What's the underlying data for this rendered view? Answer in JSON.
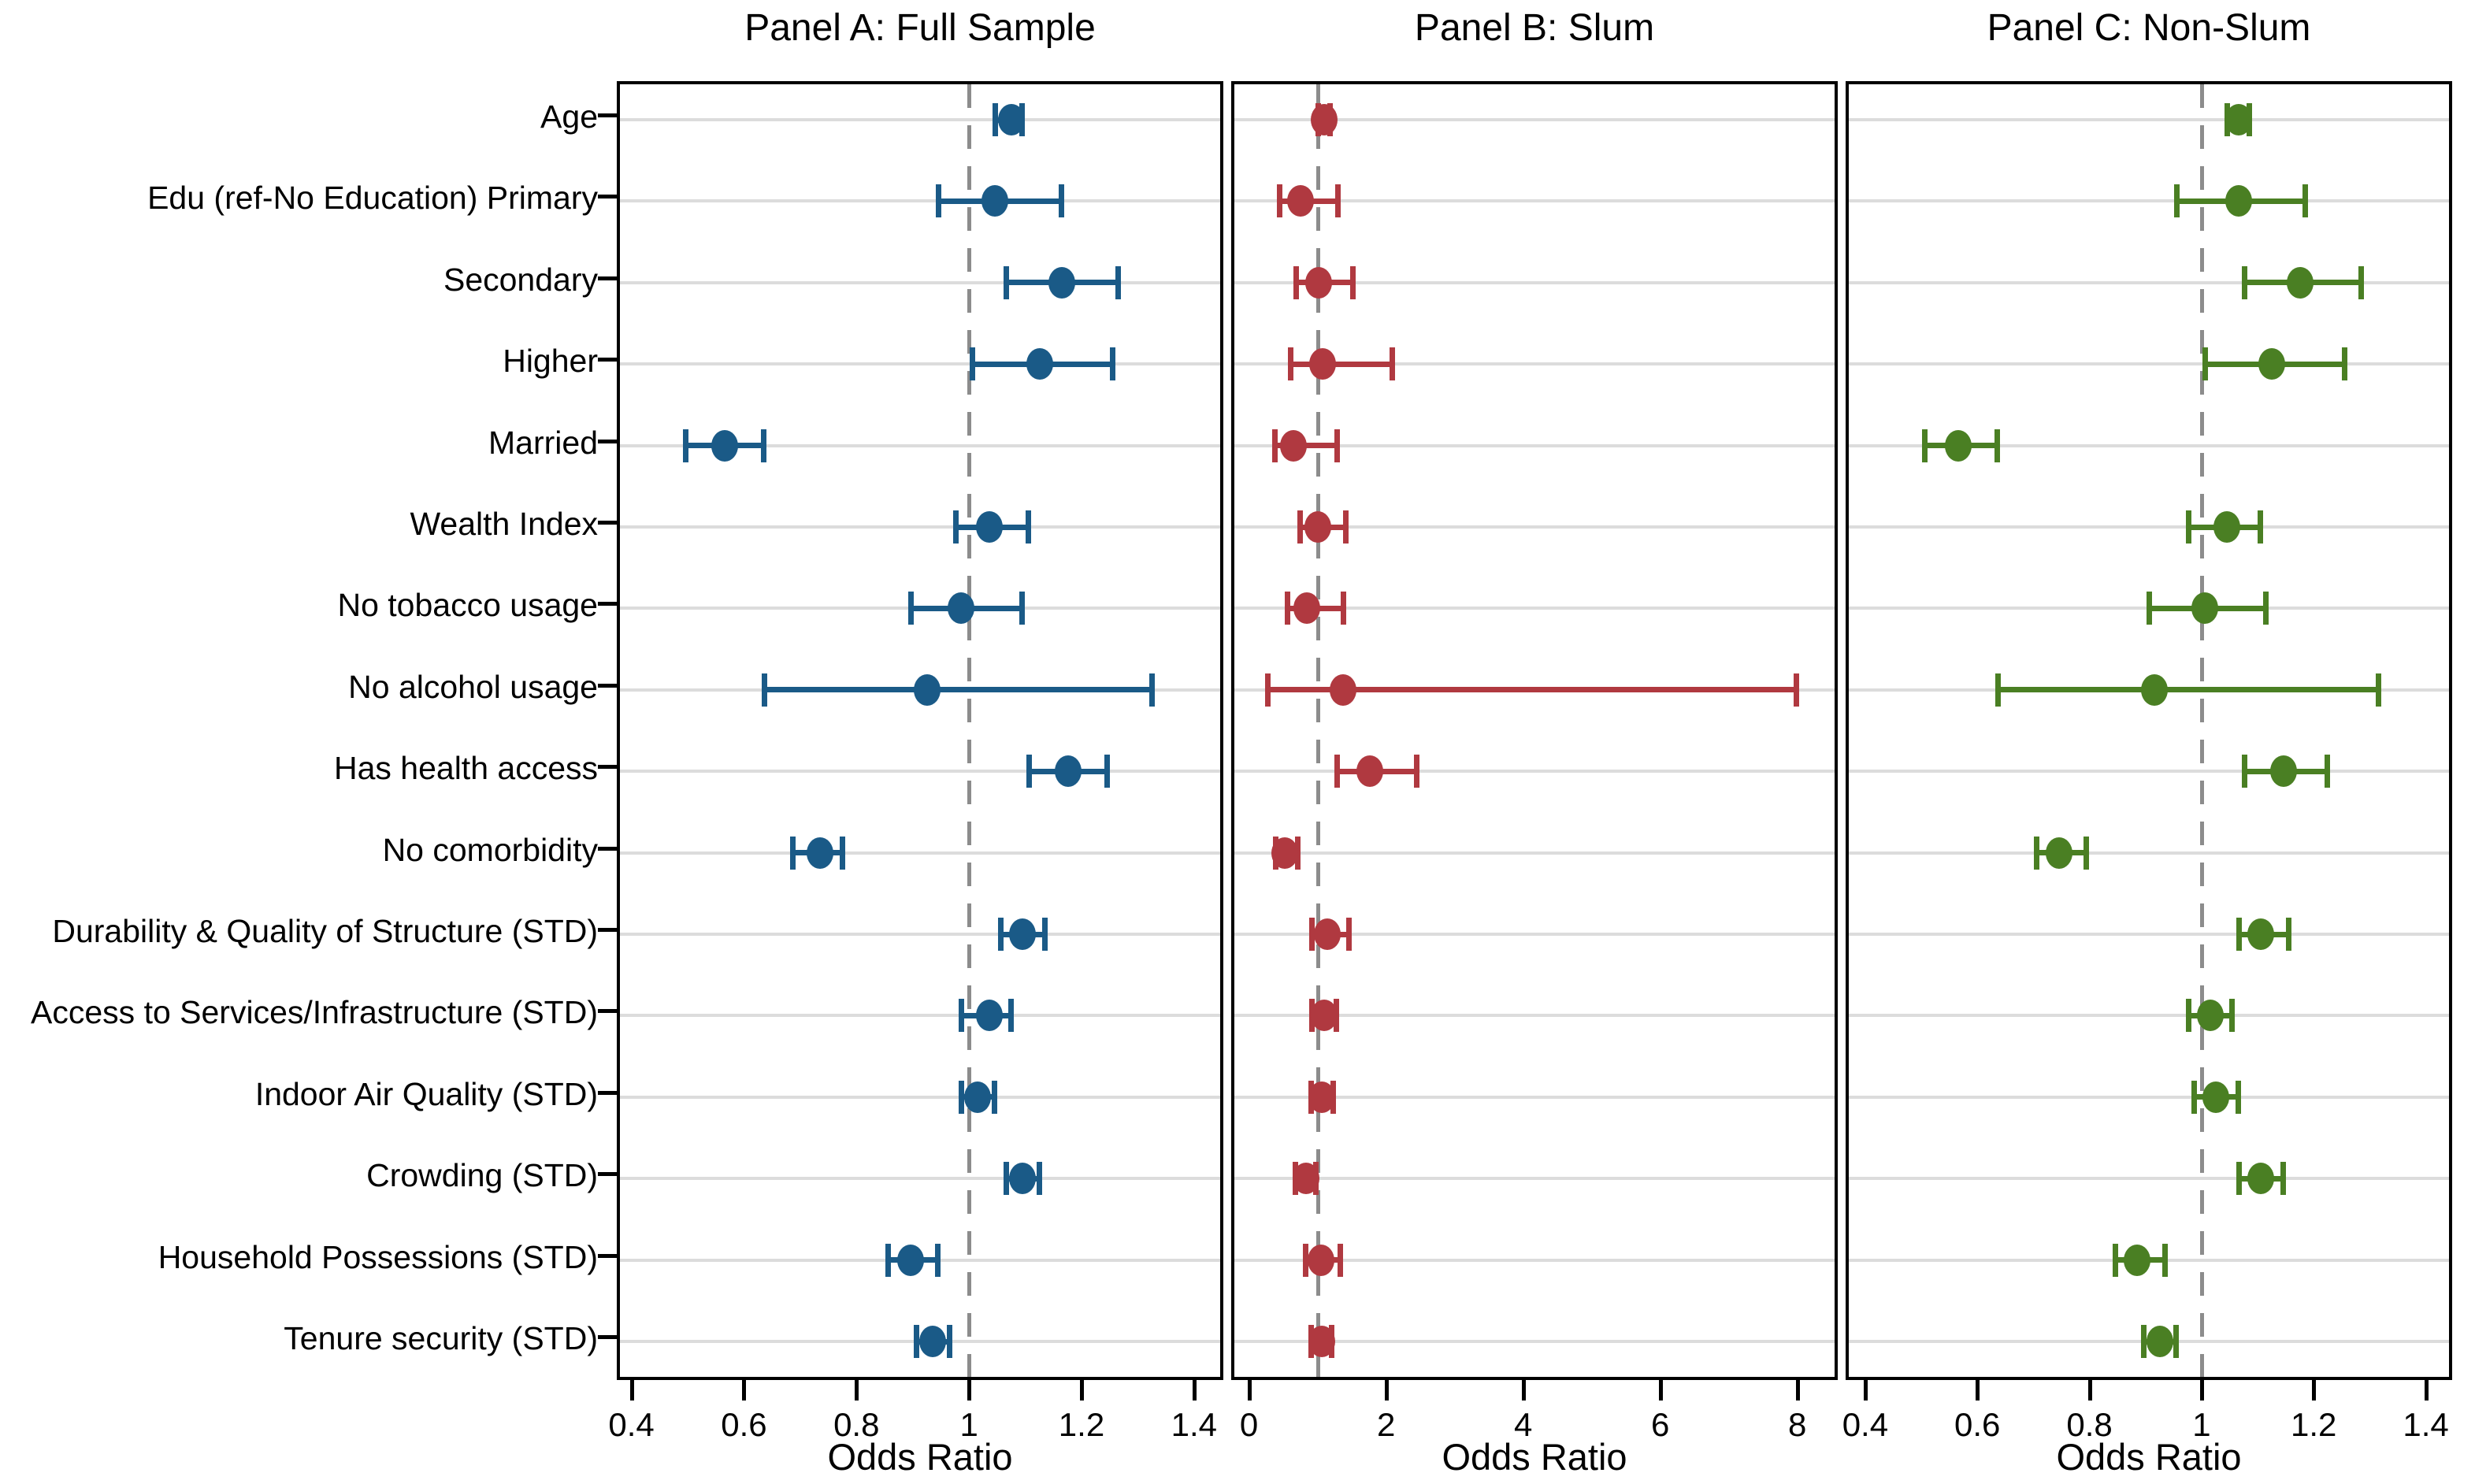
{
  "style": {
    "background": "#FFFFFF",
    "border_color": "#000000",
    "grid_line_color": "#DCDCDC",
    "ref_line_color": "#8C8C8C",
    "text_color": "#000000"
  },
  "chart_data": {
    "type": "scatter",
    "subtype": "forest-plot-odds-ratios",
    "grid": "horizontal",
    "legend_position": "none",
    "xlabel": "Odds Ratio",
    "ref_line_value": 1,
    "categories": [
      "Age",
      "Edu (ref-No Education) Primary",
      "Secondary",
      "Higher",
      "Married",
      "Wealth Index",
      "No tobacco usage",
      "No alcohol usage",
      "Has health access",
      "No comorbidity",
      "Durability & Quality of Structure (STD)",
      "Access to Services/Infrastructure (STD)",
      "Indoor Air Quality (STD)",
      "Crowding (STD)",
      "Household Possessions (STD)",
      "Tenure security (STD)"
    ],
    "panels": [
      {
        "title": "Panel A: Full Sample",
        "marker_color": "#1A5A87",
        "xlim": [
          0.374,
          1.452
        ],
        "xtick_values": [
          0.4,
          0.6,
          0.8,
          1,
          1.2,
          1.4
        ],
        "xtick_labels": [
          "0.4",
          "0.6",
          "0.8",
          "1",
          "1.2",
          "1.4"
        ],
        "series": [
          {
            "or": 1.07,
            "lo": 1.04,
            "hi": 1.09
          },
          {
            "or": 1.04,
            "lo": 0.94,
            "hi": 1.16
          },
          {
            "or": 1.16,
            "lo": 1.06,
            "hi": 1.26
          },
          {
            "or": 1.12,
            "lo": 1.0,
            "hi": 1.25
          },
          {
            "or": 0.56,
            "lo": 0.49,
            "hi": 0.63
          },
          {
            "or": 1.03,
            "lo": 0.97,
            "hi": 1.1
          },
          {
            "or": 0.98,
            "lo": 0.89,
            "hi": 1.09
          },
          {
            "or": 0.92,
            "lo": 0.63,
            "hi": 1.32
          },
          {
            "or": 1.17,
            "lo": 1.1,
            "hi": 1.24
          },
          {
            "or": 0.73,
            "lo": 0.68,
            "hi": 0.77
          },
          {
            "or": 1.09,
            "lo": 1.05,
            "hi": 1.13
          },
          {
            "or": 1.03,
            "lo": 0.98,
            "hi": 1.07
          },
          {
            "or": 1.01,
            "lo": 0.98,
            "hi": 1.04
          },
          {
            "or": 1.09,
            "lo": 1.06,
            "hi": 1.12
          },
          {
            "or": 0.89,
            "lo": 0.85,
            "hi": 0.94
          },
          {
            "or": 0.93,
            "lo": 0.9,
            "hi": 0.96
          }
        ]
      },
      {
        "title": "Panel B: Slum",
        "marker_color": "#B03940",
        "xlim": [
          -0.26,
          8.59
        ],
        "xtick_values": [
          0,
          2,
          4,
          6,
          8
        ],
        "xtick_labels": [
          "0",
          "2",
          "4",
          "6",
          "8"
        ],
        "series": [
          {
            "or": 1.05,
            "lo": 0.96,
            "hi": 1.14
          },
          {
            "or": 0.71,
            "lo": 0.4,
            "hi": 1.26
          },
          {
            "or": 0.97,
            "lo": 0.64,
            "hi": 1.47
          },
          {
            "or": 1.03,
            "lo": 0.56,
            "hi": 2.05
          },
          {
            "or": 0.6,
            "lo": 0.33,
            "hi": 1.25
          },
          {
            "or": 0.96,
            "lo": 0.69,
            "hi": 1.37
          },
          {
            "or": 0.8,
            "lo": 0.51,
            "hi": 1.34
          },
          {
            "or": 1.33,
            "lo": 0.22,
            "hi": 7.95
          },
          {
            "or": 1.72,
            "lo": 1.23,
            "hi": 2.41
          },
          {
            "or": 0.47,
            "lo": 0.34,
            "hi": 0.67
          },
          {
            "or": 1.1,
            "lo": 0.87,
            "hi": 1.42
          },
          {
            "or": 1.05,
            "lo": 0.87,
            "hi": 1.23
          },
          {
            "or": 1.02,
            "lo": 0.85,
            "hi": 1.19
          },
          {
            "or": 0.79,
            "lo": 0.63,
            "hi": 0.94
          },
          {
            "or": 1.0,
            "lo": 0.78,
            "hi": 1.29
          },
          {
            "or": 1.02,
            "lo": 0.85,
            "hi": 1.17
          }
        ]
      },
      {
        "title": "Panel C: Non-Slum",
        "marker_color": "#4A7F23",
        "xlim": [
          0.365,
          1.447
        ],
        "xtick_values": [
          0.4,
          0.6,
          0.8,
          1,
          1.2,
          1.4
        ],
        "xtick_labels": [
          "0.4",
          "0.6",
          "0.8",
          "1",
          "1.2",
          "1.4"
        ],
        "series": [
          {
            "or": 1.06,
            "lo": 1.04,
            "hi": 1.08
          },
          {
            "or": 1.06,
            "lo": 0.95,
            "hi": 1.18
          },
          {
            "or": 1.17,
            "lo": 1.07,
            "hi": 1.28
          },
          {
            "or": 1.12,
            "lo": 1.0,
            "hi": 1.25
          },
          {
            "or": 0.56,
            "lo": 0.5,
            "hi": 0.63
          },
          {
            "or": 1.04,
            "lo": 0.97,
            "hi": 1.1
          },
          {
            "or": 1.0,
            "lo": 0.9,
            "hi": 1.11
          },
          {
            "or": 0.91,
            "lo": 0.63,
            "hi": 1.31
          },
          {
            "or": 1.14,
            "lo": 1.07,
            "hi": 1.22
          },
          {
            "or": 0.74,
            "lo": 0.7,
            "hi": 0.79
          },
          {
            "or": 1.1,
            "lo": 1.06,
            "hi": 1.15
          },
          {
            "or": 1.01,
            "lo": 0.97,
            "hi": 1.05
          },
          {
            "or": 1.02,
            "lo": 0.98,
            "hi": 1.06
          },
          {
            "or": 1.1,
            "lo": 1.06,
            "hi": 1.14
          },
          {
            "or": 0.88,
            "lo": 0.84,
            "hi": 0.93
          },
          {
            "or": 0.92,
            "lo": 0.89,
            "hi": 0.95
          }
        ]
      }
    ]
  }
}
